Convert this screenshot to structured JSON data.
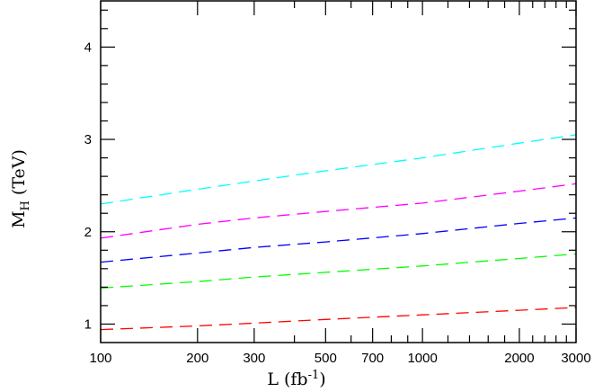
{
  "chart_data": {
    "type": "line",
    "title": "",
    "xlabel": "L (fb",
    "xlabel_sup": "-1",
    "xlabel_close": ")",
    "ylabel": "M",
    "ylabel_sub": "H",
    "ylabel_unit": " (TeV)",
    "x_scale": "log",
    "xlim": [
      100,
      3000
    ],
    "ylim": [
      0.8,
      4.5
    ],
    "x_ticks": [
      100,
      200,
      300,
      500,
      700,
      1000,
      2000,
      3000
    ],
    "x_tick_labels": [
      "100",
      "200",
      "300",
      "500",
      "700",
      "1000",
      "2000",
      "3000"
    ],
    "y_ticks": [
      1,
      2,
      3,
      4
    ],
    "y_tick_labels": [
      "1",
      "2",
      "3",
      "4"
    ],
    "grid": false,
    "line_style": "dashed",
    "x": [
      100,
      200,
      300,
      500,
      1000,
      2000,
      3000
    ],
    "series": [
      {
        "color": "#00ffff",
        "values": [
          2.3,
          2.46,
          2.55,
          2.66,
          2.8,
          2.96,
          3.05
        ]
      },
      {
        "color": "#ff00ff",
        "values": [
          1.93,
          2.08,
          2.15,
          2.22,
          2.31,
          2.44,
          2.52
        ]
      },
      {
        "color": "#0000ff",
        "values": [
          1.67,
          1.77,
          1.83,
          1.89,
          1.98,
          2.09,
          2.15
        ]
      },
      {
        "color": "#00ff00",
        "values": [
          1.39,
          1.46,
          1.51,
          1.56,
          1.63,
          1.71,
          1.76
        ]
      },
      {
        "color": "#ff0000",
        "values": [
          0.94,
          0.98,
          1.01,
          1.05,
          1.1,
          1.15,
          1.18
        ]
      }
    ]
  }
}
